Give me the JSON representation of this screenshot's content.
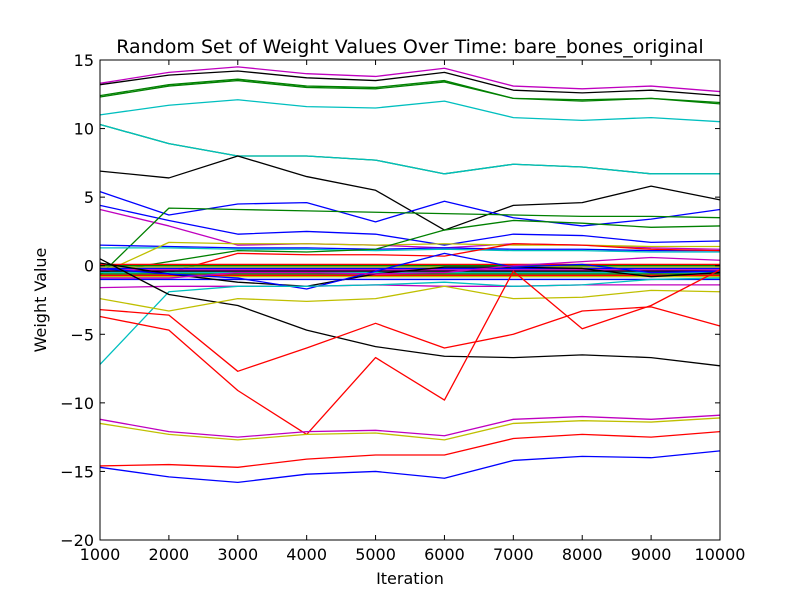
{
  "chart_data": {
    "type": "line",
    "title": "Random Set of Weight Values Over Time: bare_bones_original",
    "xlabel": "Iteration",
    "ylabel": "Weight Value",
    "x": [
      1000,
      2000,
      3000,
      4000,
      5000,
      6000,
      7000,
      8000,
      9000,
      10000
    ],
    "xlim": [
      1000,
      10000
    ],
    "ylim": [
      -20,
      15
    ],
    "xticks": [
      1000,
      2000,
      3000,
      4000,
      5000,
      6000,
      7000,
      8000,
      9000,
      10000
    ],
    "yticks": [
      -20,
      -15,
      -10,
      -5,
      0,
      5,
      10,
      15
    ],
    "ytick_labels": [
      "−20",
      "−15",
      "−10",
      "−5",
      "0",
      "5",
      "10",
      "15"
    ],
    "grid": false,
    "legend": false,
    "series": [
      {
        "color": "#bf00bf",
        "values": [
          13.3,
          14.1,
          14.5,
          14.0,
          13.8,
          14.4,
          13.1,
          12.9,
          13.1,
          12.7
        ]
      },
      {
        "color": "#000000",
        "values": [
          13.2,
          13.9,
          14.2,
          13.7,
          13.5,
          14.1,
          12.8,
          12.6,
          12.8,
          12.4
        ]
      },
      {
        "color": "#008000",
        "values": [
          12.3,
          13.1,
          13.5,
          13.0,
          12.9,
          13.4,
          12.2,
          12.0,
          12.2,
          11.8
        ]
      },
      {
        "color": "#008000",
        "values": [
          12.4,
          13.2,
          13.6,
          13.1,
          13.0,
          13.5,
          12.2,
          12.1,
          12.2,
          11.9
        ]
      },
      {
        "color": "#00bfbf",
        "values": [
          11.0,
          11.7,
          12.1,
          11.6,
          11.5,
          12.0,
          10.8,
          10.6,
          10.8,
          10.5
        ]
      },
      {
        "color": "#008000",
        "values": [
          10.3,
          8.9,
          8.0,
          8.0,
          7.7,
          6.7,
          7.4,
          7.2,
          6.7,
          6.7
        ]
      },
      {
        "color": "#00bfbf",
        "values": [
          10.3,
          8.9,
          8.0,
          8.0,
          7.7,
          6.7,
          7.4,
          7.2,
          6.7,
          6.7
        ]
      },
      {
        "color": "#000000",
        "values": [
          6.9,
          6.4,
          8.0,
          6.5,
          5.5,
          2.6,
          4.4,
          4.6,
          5.8,
          4.8
        ]
      },
      {
        "color": "#0000ff",
        "values": [
          5.4,
          3.7,
          4.5,
          4.6,
          3.2,
          4.7,
          3.5,
          2.9,
          3.4,
          4.1
        ]
      },
      {
        "color": "#0000ff",
        "values": [
          4.4,
          3.3,
          2.3,
          2.5,
          2.3,
          1.5,
          2.3,
          2.2,
          1.7,
          1.8
        ]
      },
      {
        "color": "#bf00bf",
        "values": [
          4.1,
          2.9,
          1.5,
          1.6,
          1.5,
          1.3,
          1.6,
          1.5,
          1.3,
          1.2
        ]
      },
      {
        "color": "#008000",
        "values": [
          -0.7,
          4.2,
          4.1,
          4.0,
          3.9,
          3.8,
          3.7,
          3.6,
          3.6,
          3.5
        ]
      },
      {
        "color": "#0000ff",
        "values": [
          1.5,
          1.4,
          1.3,
          1.3,
          1.2,
          1.3,
          1.2,
          1.2,
          1.1,
          1.1
        ]
      },
      {
        "color": "#00bfbf",
        "values": [
          1.3,
          1.3,
          1.2,
          1.2,
          1.1,
          1.2,
          1.1,
          1.1,
          1.0,
          1.0
        ]
      },
      {
        "color": "#bfbf00",
        "values": [
          -0.6,
          1.7,
          1.6,
          1.6,
          1.5,
          1.6,
          1.5,
          1.5,
          1.4,
          1.4
        ]
      },
      {
        "color": "#008000",
        "values": [
          -0.5,
          0.3,
          1.1,
          1.0,
          1.2,
          2.6,
          3.3,
          3.1,
          2.8,
          2.9
        ]
      },
      {
        "color": "#ff0000",
        "values": [
          -0.3,
          -0.5,
          0.9,
          0.8,
          0.8,
          0.7,
          1.6,
          1.5,
          1.2,
          1.1
        ]
      },
      {
        "color": "#008000",
        "values": [
          0.0,
          0.0,
          0.0,
          0.0,
          0.0,
          0.0,
          0.0,
          0.0,
          0.0,
          0.0
        ]
      },
      {
        "color": "#ff0000",
        "values": [
          0.1,
          0.1,
          0.1,
          0.1,
          0.1,
          0.1,
          0.1,
          0.1,
          0.1,
          0.1
        ]
      },
      {
        "color": "#bfbf00",
        "values": [
          -0.1,
          -0.1,
          -0.1,
          -0.1,
          -0.1,
          -0.1,
          -0.1,
          -0.1,
          -0.1,
          -0.1
        ]
      },
      {
        "color": "#0000ff",
        "values": [
          -0.2,
          -0.2,
          -0.2,
          -0.2,
          -0.2,
          -0.2,
          -0.2,
          -0.2,
          -0.2,
          -0.2
        ]
      },
      {
        "color": "#bf00bf",
        "values": [
          -0.3,
          -0.3,
          -0.3,
          -0.3,
          -0.3,
          -0.3,
          -0.3,
          -0.3,
          -0.3,
          -0.3
        ]
      },
      {
        "color": "#000000",
        "values": [
          -0.4,
          -0.4,
          -0.4,
          -0.4,
          -0.4,
          -0.4,
          -0.4,
          -0.4,
          -0.4,
          -0.4
        ]
      },
      {
        "color": "#00bfbf",
        "values": [
          -0.5,
          -0.5,
          -0.5,
          -0.5,
          -0.5,
          -0.5,
          -0.5,
          -0.5,
          -0.5,
          -0.5
        ]
      },
      {
        "color": "#008000",
        "values": [
          -0.6,
          -0.6,
          -0.6,
          -0.6,
          -0.6,
          -0.6,
          -0.6,
          -0.6,
          -0.6,
          -0.6
        ]
      },
      {
        "color": "#bfbf00",
        "values": [
          -0.8,
          -0.8,
          -0.8,
          -0.8,
          -0.8,
          -0.8,
          -0.8,
          -0.8,
          -0.8,
          -0.8
        ]
      },
      {
        "color": "#ff0000",
        "values": [
          -0.7,
          -0.7,
          -0.7,
          -0.7,
          -0.7,
          -0.7,
          -0.7,
          -0.7,
          -0.7,
          -0.7
        ]
      },
      {
        "color": "#0000ff",
        "values": [
          -1.0,
          -1.0,
          -1.0,
          -1.0,
          -1.0,
          -1.0,
          -1.0,
          -1.0,
          -1.0,
          -1.0
        ]
      },
      {
        "color": "#000000",
        "values": [
          0.2,
          -0.6,
          -1.2,
          -1.5,
          -0.6,
          -0.1,
          -0.1,
          -0.2,
          -0.8,
          -0.5
        ]
      },
      {
        "color": "#0000ff",
        "values": [
          -0.2,
          -0.6,
          -0.9,
          -1.7,
          -0.4,
          0.9,
          -0.1,
          0.1,
          -0.5,
          -0.4
        ]
      },
      {
        "color": "#bf00bf",
        "values": [
          -1.6,
          -1.5,
          -1.5,
          -1.5,
          -1.4,
          -1.5,
          -1.5,
          -1.4,
          -1.4,
          -1.4
        ]
      },
      {
        "color": "#00bfbf",
        "values": [
          -7.2,
          -1.9,
          -1.5,
          -1.5,
          -1.4,
          -1.2,
          -1.5,
          -1.4,
          -1.0,
          -0.9
        ]
      },
      {
        "color": "#bf00bf",
        "values": [
          -0.9,
          -0.9,
          -0.5,
          -0.5,
          -0.6,
          -0.5,
          0.0,
          0.3,
          0.6,
          0.4
        ]
      },
      {
        "color": "#000000",
        "values": [
          0.5,
          -2.1,
          -2.9,
          -4.7,
          -5.9,
          -6.6,
          -6.7,
          -6.5,
          -6.7,
          -7.3
        ]
      },
      {
        "color": "#bfbf00",
        "values": [
          -2.4,
          -3.3,
          -2.4,
          -2.6,
          -2.4,
          -1.5,
          -2.4,
          -2.3,
          -1.8,
          -1.9
        ]
      },
      {
        "color": "#ff0000",
        "values": [
          -3.2,
          -3.6,
          -7.7,
          -6.0,
          -4.2,
          -6.0,
          -5.0,
          -3.3,
          -3.0,
          -4.4
        ]
      },
      {
        "color": "#ff0000",
        "values": [
          -3.7,
          -4.7,
          -9.1,
          -12.3,
          -6.7,
          -9.8,
          -0.4,
          -4.6,
          -2.9,
          -0.3
        ]
      },
      {
        "color": "#bf00bf",
        "values": [
          -11.2,
          -12.1,
          -12.5,
          -12.1,
          -12.0,
          -12.4,
          -11.2,
          -11.0,
          -11.2,
          -10.9
        ]
      },
      {
        "color": "#bfbf00",
        "values": [
          -11.5,
          -12.3,
          -12.7,
          -12.3,
          -12.2,
          -12.7,
          -11.5,
          -11.3,
          -11.4,
          -11.1
        ]
      },
      {
        "color": "#ff0000",
        "values": [
          -14.6,
          -14.5,
          -14.7,
          -14.1,
          -13.8,
          -13.8,
          -12.6,
          -12.3,
          -12.5,
          -12.1
        ]
      },
      {
        "color": "#0000ff",
        "values": [
          -14.7,
          -15.4,
          -15.8,
          -15.2,
          -15.0,
          -15.5,
          -14.2,
          -13.9,
          -14.0,
          -13.5
        ]
      }
    ]
  }
}
